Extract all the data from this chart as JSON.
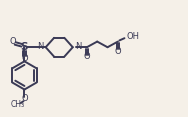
{
  "bg_color": "#f5f0e8",
  "line_color": "#3a3a55",
  "line_width": 1.4,
  "font_size": 6.0,
  "fig_width": 1.88,
  "fig_height": 1.17,
  "dpi": 100,
  "xlim": [
    0,
    10
  ],
  "ylim": [
    0,
    5.5
  ]
}
